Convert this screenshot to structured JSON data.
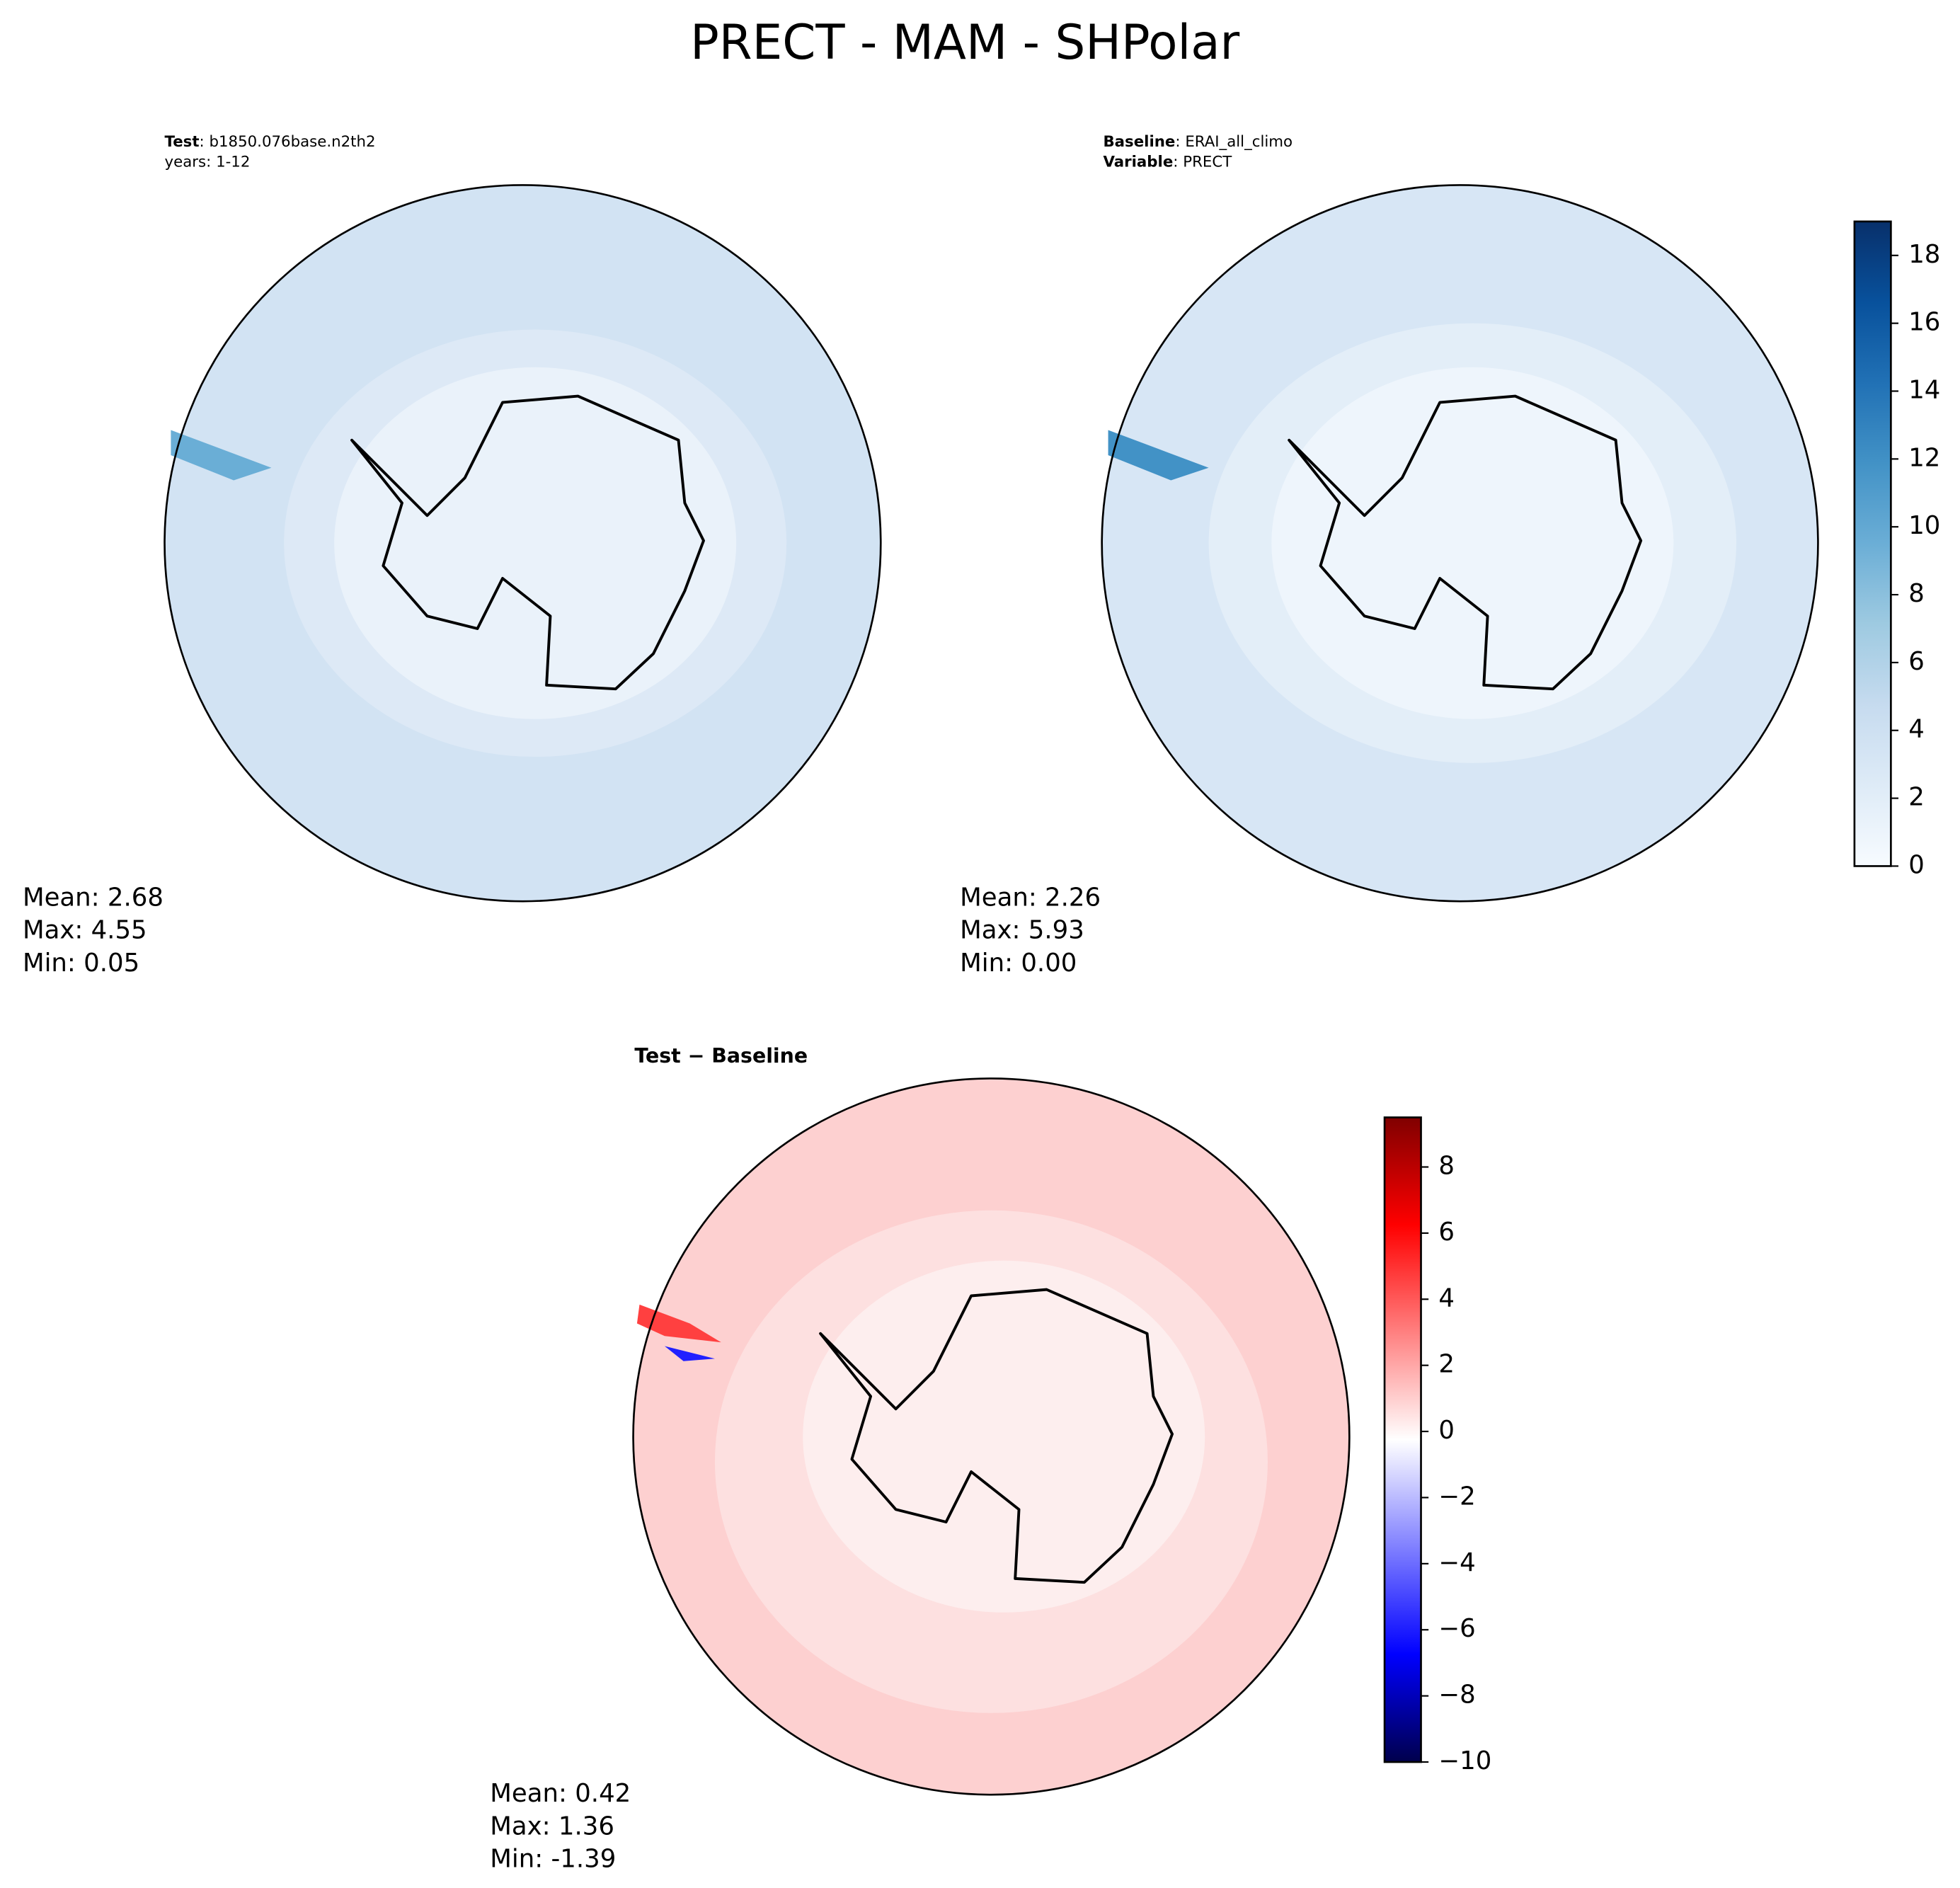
{
  "title": "PRECT - MAM - SHPolar",
  "panels": [
    {
      "label_key": "Test",
      "label_value": ": b1850.076base.n2th2",
      "label_line2": "years: 1-12",
      "stats": [
        "Mean:  2.68",
        "Max:  4.55",
        "Min:  0.05"
      ]
    },
    {
      "label_key": "Baseline",
      "label_value": ": ERAI_all_climo",
      "label_key2": "Variable",
      "label_value2": ": PRECT",
      "stats": [
        "Mean:  2.26",
        "Max:  5.93",
        "Min:  0.00"
      ]
    },
    {
      "label": "Test − Baseline",
      "stats": [
        "Mean:  0.42",
        "Max:  1.36",
        "Min: -1.39"
      ]
    }
  ],
  "colorbars": [
    {
      "lim": [
        0,
        19
      ],
      "ticks": [
        0,
        2,
        4,
        6,
        8,
        10,
        12,
        14,
        16,
        18
      ],
      "colors": [
        "#f7fbff",
        "#deebf7",
        "#c6dbef",
        "#9ecae1",
        "#6baed6",
        "#4292c6",
        "#2171b5",
        "#08519c",
        "#08306b"
      ]
    },
    {
      "lim": [
        -10,
        9.5
      ],
      "ticks": [
        {
          "value": -10,
          "label": "−10"
        },
        {
          "value": -8,
          "label": "−8"
        },
        {
          "value": -6,
          "label": "−6"
        },
        {
          "value": -4,
          "label": "−4"
        },
        {
          "value": -2,
          "label": "−2"
        },
        0,
        2,
        4,
        6,
        8
      ],
      "colors": [
        "#00004c",
        "#0000ff",
        "#8080ff",
        "#ffffff",
        "#ff8080",
        "#ff0000",
        "#800000"
      ]
    }
  ]
}
